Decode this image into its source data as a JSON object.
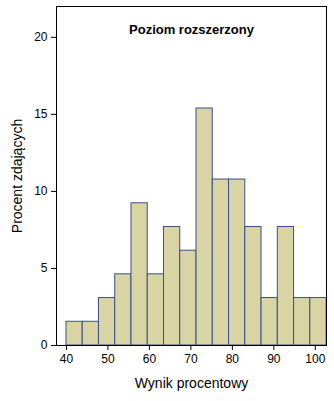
{
  "chart_data": {
    "type": "histogram",
    "title": "Poziom rozszerzony",
    "x_label": "Wynik procentowy",
    "y_label": "Procent zdających",
    "bins": [
      40,
      43.92,
      47.84,
      51.76,
      55.68,
      59.6,
      63.52,
      67.44,
      71.36,
      75.28,
      79.2,
      83.12,
      87.04,
      90.96,
      94.88,
      98.8,
      102.72
    ],
    "values": [
      1.54,
      1.54,
      3.08,
      4.62,
      9.23,
      4.62,
      7.69,
      6.15,
      15.38,
      10.77,
      10.77,
      7.69,
      3.08,
      7.69,
      3.08,
      3.08
    ],
    "color": "#d8d4a3",
    "xlim": [
      37.6,
      102.7
    ],
    "xticks": [
      40,
      50,
      60,
      70,
      80,
      90,
      100
    ],
    "ylim": [
      0,
      22
    ],
    "yticks": [
      0,
      5,
      10,
      15,
      20
    ],
    "grid": false
  }
}
